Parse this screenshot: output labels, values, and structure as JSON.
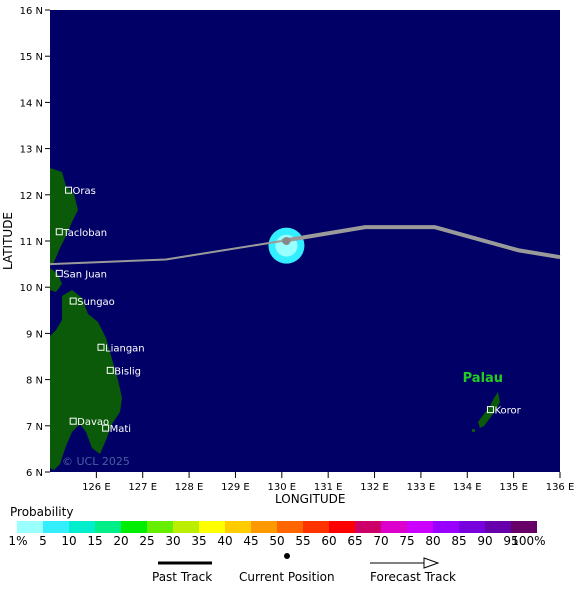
{
  "map": {
    "axis": {
      "x_title": "LONGITUDE",
      "y_title": "LATITUDE",
      "lon_range": [
        125,
        136
      ],
      "lat_range": [
        6,
        16
      ],
      "lon_ticks": [
        {
          "value": 126,
          "label": "126 E"
        },
        {
          "value": 127,
          "label": "127 E"
        },
        {
          "value": 128,
          "label": "128 E"
        },
        {
          "value": 129,
          "label": "129 E"
        },
        {
          "value": 130,
          "label": "130 E"
        },
        {
          "value": 131,
          "label": "131 E"
        },
        {
          "value": 132,
          "label": "132 E"
        },
        {
          "value": 133,
          "label": "133 E"
        },
        {
          "value": 134,
          "label": "134 E"
        },
        {
          "value": 135,
          "label": "135 E"
        },
        {
          "value": 136,
          "label": "136 E"
        }
      ],
      "lat_ticks": [
        {
          "value": 16,
          "label": "16 N"
        },
        {
          "value": 15,
          "label": "15 N"
        },
        {
          "value": 14,
          "label": "14 N"
        },
        {
          "value": 13,
          "label": "13 N"
        },
        {
          "value": 12,
          "label": "12 N"
        },
        {
          "value": 11,
          "label": "11 N"
        },
        {
          "value": 10,
          "label": "10 N"
        },
        {
          "value": 9,
          "label": "9 N"
        },
        {
          "value": 8,
          "label": "8 N"
        },
        {
          "value": 7,
          "label": "7 N"
        },
        {
          "value": 6,
          "label": "6 N"
        }
      ]
    },
    "colors": {
      "ocean": "#000066",
      "land": "#0a5a0a",
      "track": "#9a9a9a",
      "region_label": "#22cc22"
    },
    "cities": [
      {
        "name": "Oras",
        "lon": 125.4,
        "lat": 12.1
      },
      {
        "name": "Tacloban",
        "lon": 125.2,
        "lat": 11.2
      },
      {
        "name": "San Juan",
        "lon": 125.2,
        "lat": 10.3
      },
      {
        "name": "Sungao",
        "lon": 125.5,
        "lat": 9.7
      },
      {
        "name": "Liangan",
        "lon": 126.1,
        "lat": 8.7
      },
      {
        "name": "Bislig",
        "lon": 126.3,
        "lat": 8.2
      },
      {
        "name": "Davao",
        "lon": 125.5,
        "lat": 7.1
      },
      {
        "name": "Mati",
        "lon": 126.2,
        "lat": 6.95
      },
      {
        "name": "Koror",
        "lon": 134.5,
        "lat": 7.35
      }
    ],
    "region_label": {
      "name": "Palau",
      "lon": 133.9,
      "lat": 7.95
    },
    "watermark": "© UCL 2025",
    "past_track": [
      [
        125,
        10.5
      ],
      [
        127.5,
        10.6
      ],
      [
        130,
        11.0
      ]
    ],
    "forecast_track": [
      [
        130,
        11.0
      ],
      [
        131.8,
        11.3
      ],
      [
        133.3,
        11.3
      ],
      [
        135.1,
        10.8
      ],
      [
        136,
        10.65
      ]
    ],
    "current_position": {
      "lon": 130.1,
      "lat": 11.0
    },
    "probability_blob": {
      "lon": 130.1,
      "lat": 10.9
    }
  },
  "legend": {
    "title": "Probability",
    "colors": [
      "#99ffff",
      "#33eeff",
      "#00eecc",
      "#00ee88",
      "#00ee00",
      "#66ee00",
      "#bbee00",
      "#ffff00",
      "#ffcc00",
      "#ff9900",
      "#ff6600",
      "#ff3300",
      "#ff0000",
      "#cc0066",
      "#dd00cc",
      "#cc00ff",
      "#9900ff",
      "#7700dd",
      "#6600aa",
      "#660066"
    ],
    "labels": [
      "1%",
      "5",
      "10",
      "15",
      "20",
      "25",
      "30",
      "35",
      "40",
      "45",
      "50",
      "55",
      "60",
      "65",
      "70",
      "75",
      "80",
      "85",
      "90",
      "95",
      "100%"
    ]
  },
  "key": {
    "past_track": "Past Track",
    "current_position": "Current Position",
    "forecast_track": "Forecast Track"
  }
}
